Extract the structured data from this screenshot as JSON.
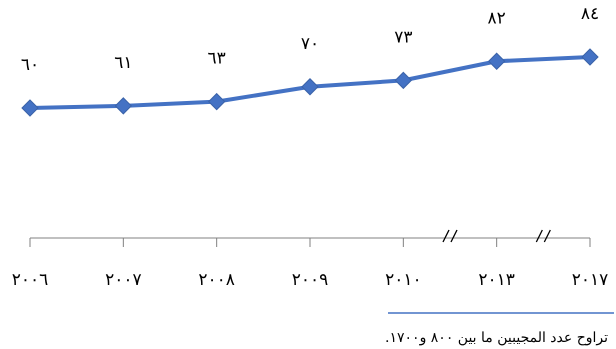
{
  "chart_data": {
    "type": "line",
    "categories": [
      "٢٠٠٦",
      "٢٠٠٧",
      "٢٠٠٨",
      "٢٠٠٩",
      "٢٠١٠",
      "٢٠١٣",
      "٢٠١٧"
    ],
    "series": [
      {
        "values": [
          60,
          61,
          63,
          70,
          73,
          82,
          84
        ],
        "labels": [
          "٦٠",
          "٦١",
          "٦٣",
          "٧٠",
          "٧٣",
          "٨٢",
          "٨٤"
        ],
        "color": "#4472C4"
      }
    ],
    "axis_breaks": [
      "between ٢٠١٠ and ٢٠١٣",
      "between ٢٠١٣ and ٢٠١٧"
    ],
    "grid": false
  },
  "footnote": "تراوح عدد المجيبين ما بين ٨٠٠ و١٧٠٠."
}
